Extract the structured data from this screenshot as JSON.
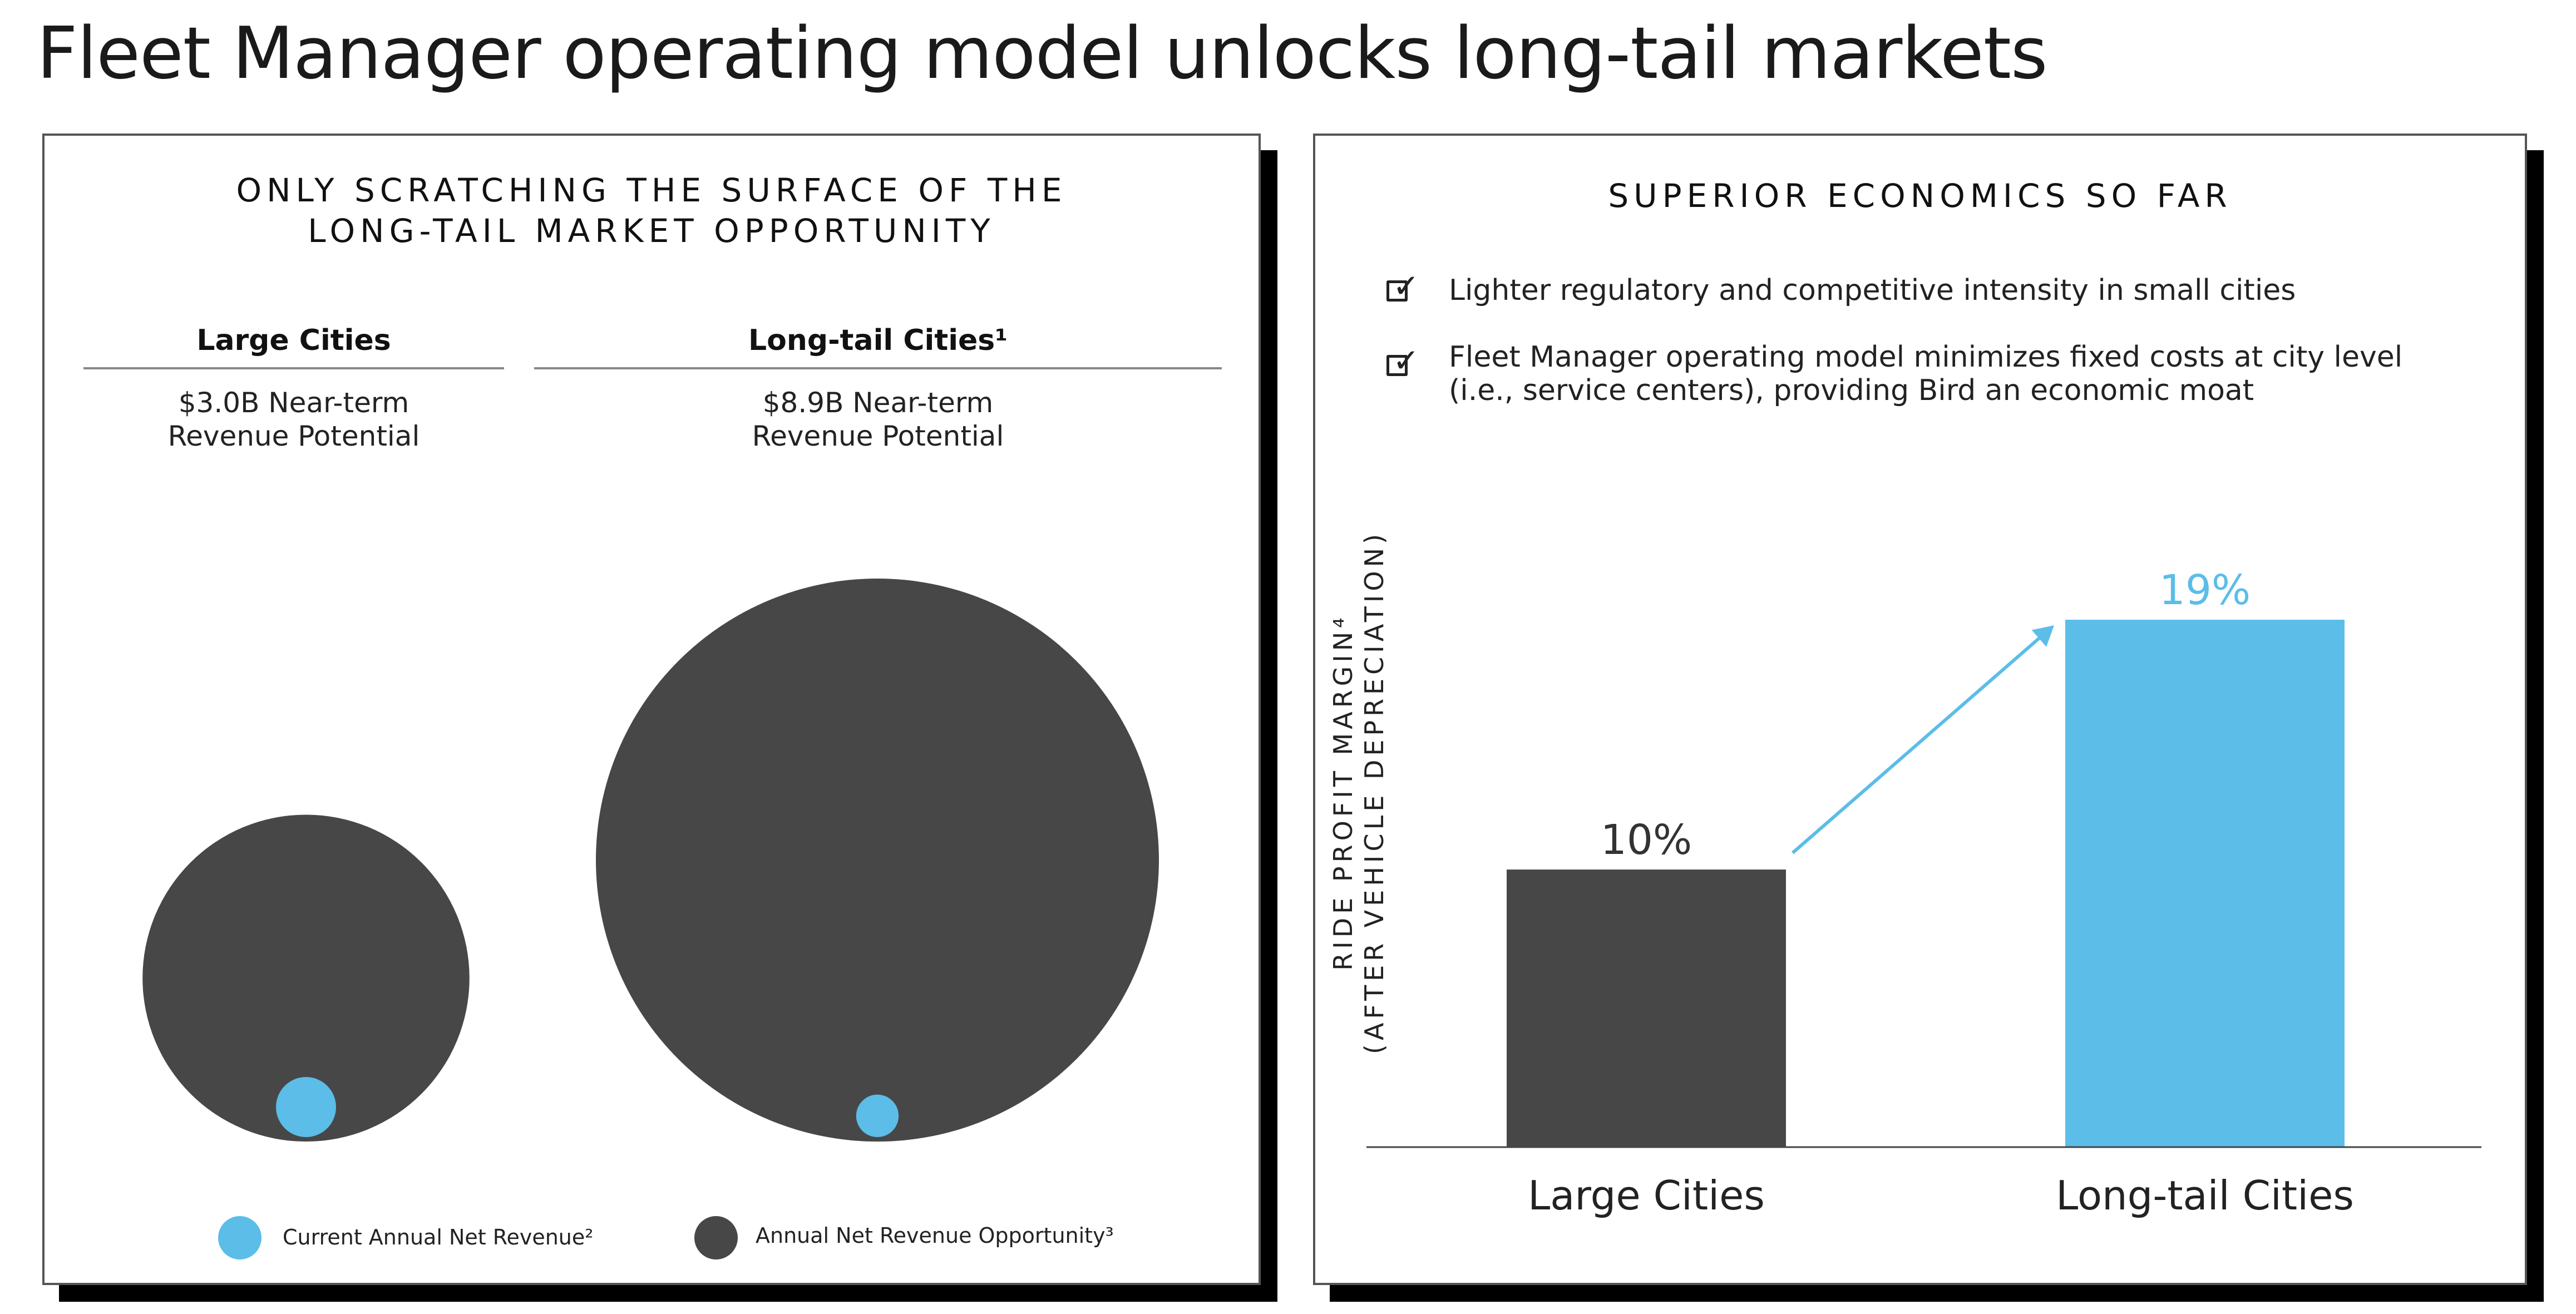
{
  "title": "Fleet Manager operating model unlocks long-tail markets",
  "left_panel": {
    "heading_line1": "ONLY SCRATCHING THE SURFACE OF THE",
    "heading_line2": "LONG-TAIL MARKET OPPORTUNITY",
    "columns": [
      {
        "name": "Large Cities",
        "sub_line1": "$3.0B Near-term",
        "sub_line2": "Revenue Potential"
      },
      {
        "name": "Long-tail Cities¹",
        "sub_line1": "$8.9B Near-term",
        "sub_line2": "Revenue Potential"
      }
    ],
    "legend": [
      {
        "label": "Current Annual Net Revenue²",
        "color": "#5bbde8"
      },
      {
        "label": "Annual Net Revenue Opportunity³",
        "color": "#474747"
      }
    ]
  },
  "right_panel": {
    "heading": "SUPERIOR ECONOMICS SO FAR",
    "bullets": [
      {
        "line1": "Lighter regulatory and competitive intensity in small cities",
        "line2": ""
      },
      {
        "line1": "Fleet Manager operating model minimizes fixed costs at city level",
        "line2": "(i.e., service centers), providing Bird an economic moat"
      }
    ],
    "check_icon": "checkbox-checked-icon"
  },
  "chart_data": [
    {
      "type": "bubble",
      "categories": [
        "Large Cities",
        "Long-tail Cities¹"
      ],
      "series": [
        {
          "name": "Annual Net Revenue Opportunity³",
          "values": [
            3.0,
            8.9
          ],
          "color": "#474747"
        },
        {
          "name": "Current Annual Net Revenue²",
          "values": [
            0.1,
            0.05
          ],
          "color": "#5bbde8"
        }
      ]
    },
    {
      "type": "bar",
      "categories": [
        "Large Cities",
        "Long-tail Cities"
      ],
      "values": [
        10,
        19
      ],
      "value_labels": [
        "10%",
        "19%"
      ],
      "colors": [
        "#474747",
        "#5bbde8"
      ],
      "ylabel_line1": "RIDE PROFIT MARGIN⁴",
      "ylabel_line2": "(AFTER VEHICLE DEPRECIATION)",
      "ylim": [
        0,
        20
      ],
      "grid": false,
      "annotation": "arrow from Large Cities bar to Long-tail Cities bar"
    }
  ]
}
